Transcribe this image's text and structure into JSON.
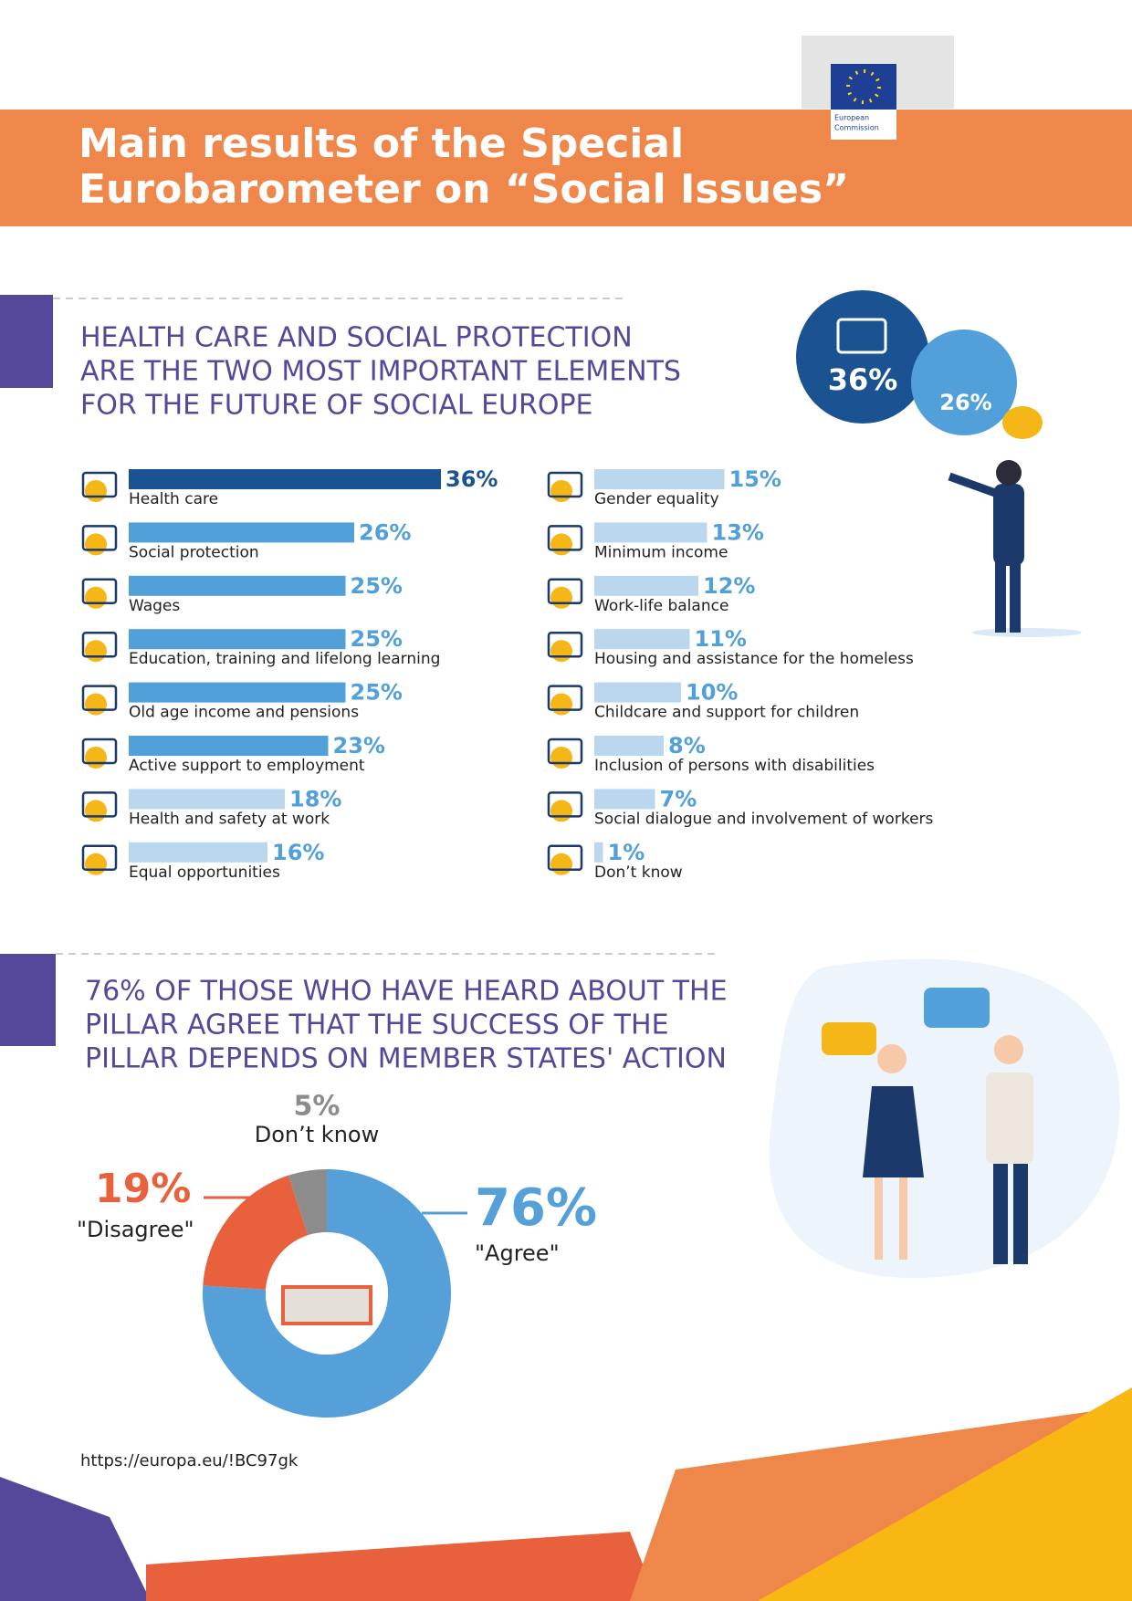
{
  "header": {
    "title": [
      "Main results of the Special",
      "Eurobarometer on “Social Issues”"
    ],
    "logo": [
      "European",
      "Commission"
    ]
  },
  "highlights": {
    "values": [
      36,
      26
    ],
    "value_labels": [
      "36%",
      "26%"
    ]
  },
  "chart_data": [
    {
      "type": "bar",
      "orientation": "horizontal",
      "title": [
        "HEALTH CARE AND SOCIAL PROTECTION",
        "ARE THE TWO MOST IMPORTANT ELEMENTS",
        "FOR THE FUTURE OF SOCIAL EUROPE"
      ],
      "categories": [
        "Health care",
        "Social protection",
        "Wages",
        "Education, training and lifelong learning",
        "Old age income and pensions",
        "Active support to employment",
        "Health and safety at work",
        "Equal opportunities",
        "Gender equality",
        "Minimum income",
        "Work-life balance",
        "Housing and assistance for the homeless",
        "Childcare and support for children",
        "Inclusion of persons with disabilities",
        "Social dialogue and involvement of workers",
        "Don’t know"
      ],
      "values": [
        36,
        26,
        25,
        25,
        25,
        23,
        18,
        16,
        15,
        13,
        12,
        11,
        10,
        8,
        7,
        1
      ],
      "value_labels": [
        "36%",
        "26%",
        "25%",
        "25%",
        "25%",
        "23%",
        "18%",
        "16%",
        "15%",
        "13%",
        "12%",
        "11%",
        "10%",
        "8%",
        "7%",
        "1%"
      ],
      "colors": [
        "#1b5392",
        "#52a0da",
        "#52a0da",
        "#52a0da",
        "#52a0da",
        "#52a0da",
        "#bad7ee",
        "#bad7ee",
        "#bad7ee",
        "#bad7ee",
        "#bad7ee",
        "#bad7ee",
        "#bad7ee",
        "#bad7ee",
        "#bad7ee",
        "#bad7ee"
      ]
    },
    {
      "type": "donut",
      "title": [
        "76% OF THOSE WHO HAVE HEARD ABOUT THE",
        "PILLAR AGREE THAT THE SUCCESS OF THE",
        "PILLAR DEPENDS ON MEMBER STATES' ACTION"
      ],
      "categories": [
        "\"Agree\"",
        "\"Disagree\"",
        "Don’t know"
      ],
      "values": [
        76,
        19,
        5
      ],
      "value_labels": [
        "76%",
        "19%",
        "5%"
      ],
      "colors": [
        "#55a0d9",
        "#e8603c",
        "#8c8c8c"
      ]
    }
  ],
  "url": "https://europa.eu/!BC97gk"
}
